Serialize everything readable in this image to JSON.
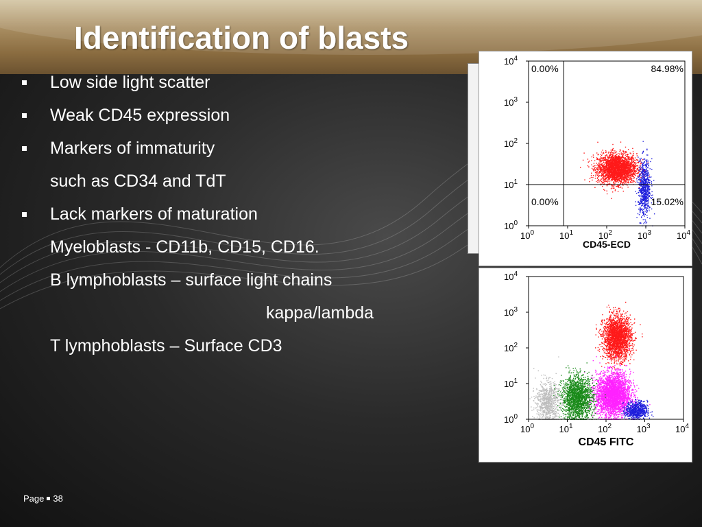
{
  "title": "Identification of blasts",
  "lines": [
    {
      "text": "Low side light scatter",
      "bullet": true
    },
    {
      "text": "Weak CD45 expression",
      "bullet": true
    },
    {
      "text": "Markers of immaturity",
      "bullet": true
    },
    {
      "text": "such as CD34 and TdT",
      "bullet": false
    },
    {
      "text": "Lack markers of maturation",
      "bullet": true
    },
    {
      "text": "Myeloblasts - CD11b, CD15,  CD16.",
      "bullet": false
    },
    {
      "text": "B lymphoblasts – surface light chains",
      "bullet": false
    },
    {
      "text": "kappa/lambda",
      "bullet": false
    },
    {
      "text": "T lymphoblasts – Surface CD3",
      "bullet": false
    }
  ],
  "footer": {
    "page_label": "Page",
    "page_number": "38"
  },
  "colors": {
    "red": "#ff1a1a",
    "blue": "#1f1fdc",
    "green": "#1a8a1a",
    "magenta": "#ff22ff",
    "grey": "#bdbdbd",
    "header": "#8a6c40"
  },
  "chart_data": [
    {
      "type": "scatter",
      "title": "",
      "xlabel": "CD45-ECD",
      "ylabel": "",
      "scale": "log",
      "xlim": [
        1,
        10000
      ],
      "ylim": [
        1,
        10000
      ],
      "x_tick_labels": [
        "10^0",
        "10^1",
        "10^2",
        "10^3",
        "10^4"
      ],
      "y_tick_labels": [
        "10^0",
        "10^1",
        "10^2",
        "10^3",
        "10^4"
      ],
      "quadrant_gate": {
        "x": 8,
        "y": 10
      },
      "quadrant_labels": {
        "upper_left": "0.00%",
        "upper_right": "84.98%",
        "lower_left": "0.00%",
        "lower_right": "15.02%"
      },
      "series": [
        {
          "color": "red",
          "points": 2600,
          "center": [
            180,
            25
          ],
          "spread": [
            0.25,
            0.18
          ]
        },
        {
          "color": "blue",
          "points": 700,
          "center": [
            900,
            8
          ],
          "spread": [
            0.08,
            0.35
          ]
        }
      ]
    },
    {
      "type": "scatter",
      "title": "",
      "xlabel": "CD45 FITC",
      "ylabel": "",
      "scale": "log",
      "xlim": [
        1,
        10000
      ],
      "ylim": [
        1,
        10000
      ],
      "x_tick_labels": [
        "10^0",
        "10^1",
        "10^2",
        "10^3",
        "10^4"
      ],
      "y_tick_labels": [
        "10^0",
        "10^1",
        "10^2",
        "10^3",
        "10^4"
      ],
      "series": [
        {
          "color": "red",
          "points": 2300,
          "center": [
            190,
            200
          ],
          "spread": [
            0.18,
            0.3
          ]
        },
        {
          "color": "magenta",
          "points": 3200,
          "center": [
            150,
            5
          ],
          "spread": [
            0.22,
            0.3
          ]
        },
        {
          "color": "green",
          "points": 1800,
          "center": [
            18,
            4
          ],
          "spread": [
            0.2,
            0.3
          ]
        },
        {
          "color": "grey",
          "points": 800,
          "center": [
            3,
            3
          ],
          "spread": [
            0.15,
            0.3
          ]
        },
        {
          "color": "blue",
          "points": 700,
          "center": [
            600,
            1.8
          ],
          "spread": [
            0.14,
            0.12
          ]
        }
      ]
    }
  ]
}
